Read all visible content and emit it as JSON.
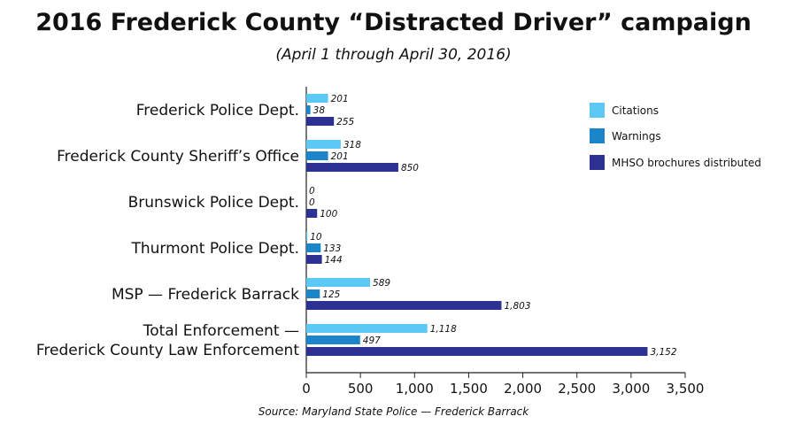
{
  "chart_data": {
    "type": "bar",
    "orientation": "horizontal",
    "title": "2016 Frederick County “Distracted Driver” campaign",
    "subtitle": "(April 1 through April 30, 2016)",
    "source": "Source: Maryland State Police — Frederick Barrack",
    "categories": [
      [
        "Frederick Police Dept."
      ],
      [
        "Frederick County Sheriff’s Office"
      ],
      [
        "Brunswick Police Dept."
      ],
      [
        "Thurmont Police Dept."
      ],
      [
        "MSP — Frederick Barrack"
      ],
      [
        "Total Enforcement —",
        "Frederick County Law Enforcement"
      ]
    ],
    "series": [
      {
        "name": "Citations",
        "color": "#5bc8f5",
        "values": [
          201,
          318,
          0,
          10,
          589,
          1118
        ],
        "labels": [
          "201",
          "318",
          "0",
          "10",
          "589",
          "1,118"
        ]
      },
      {
        "name": "Warnings",
        "color": "#1a86c9",
        "values": [
          38,
          201,
          0,
          133,
          125,
          497
        ],
        "labels": [
          "38",
          "201",
          "0",
          "133",
          "125",
          "497"
        ]
      },
      {
        "name": "MHSO brochures distributed",
        "color": "#2d3191",
        "values": [
          255,
          850,
          100,
          144,
          1803,
          3152
        ],
        "labels": [
          "255",
          "850",
          "100",
          "144",
          "1,803",
          "3,152"
        ]
      }
    ],
    "xlim": [
      0,
      3500
    ],
    "ticks": [
      0,
      500,
      1000,
      1500,
      2000,
      2500,
      3000,
      3500
    ],
    "tick_labels": [
      "0",
      "500",
      "1,000",
      "1,500",
      "2,000",
      "2,500",
      "3,000",
      "3,500"
    ],
    "legend_position": "top-right",
    "grid": false
  }
}
